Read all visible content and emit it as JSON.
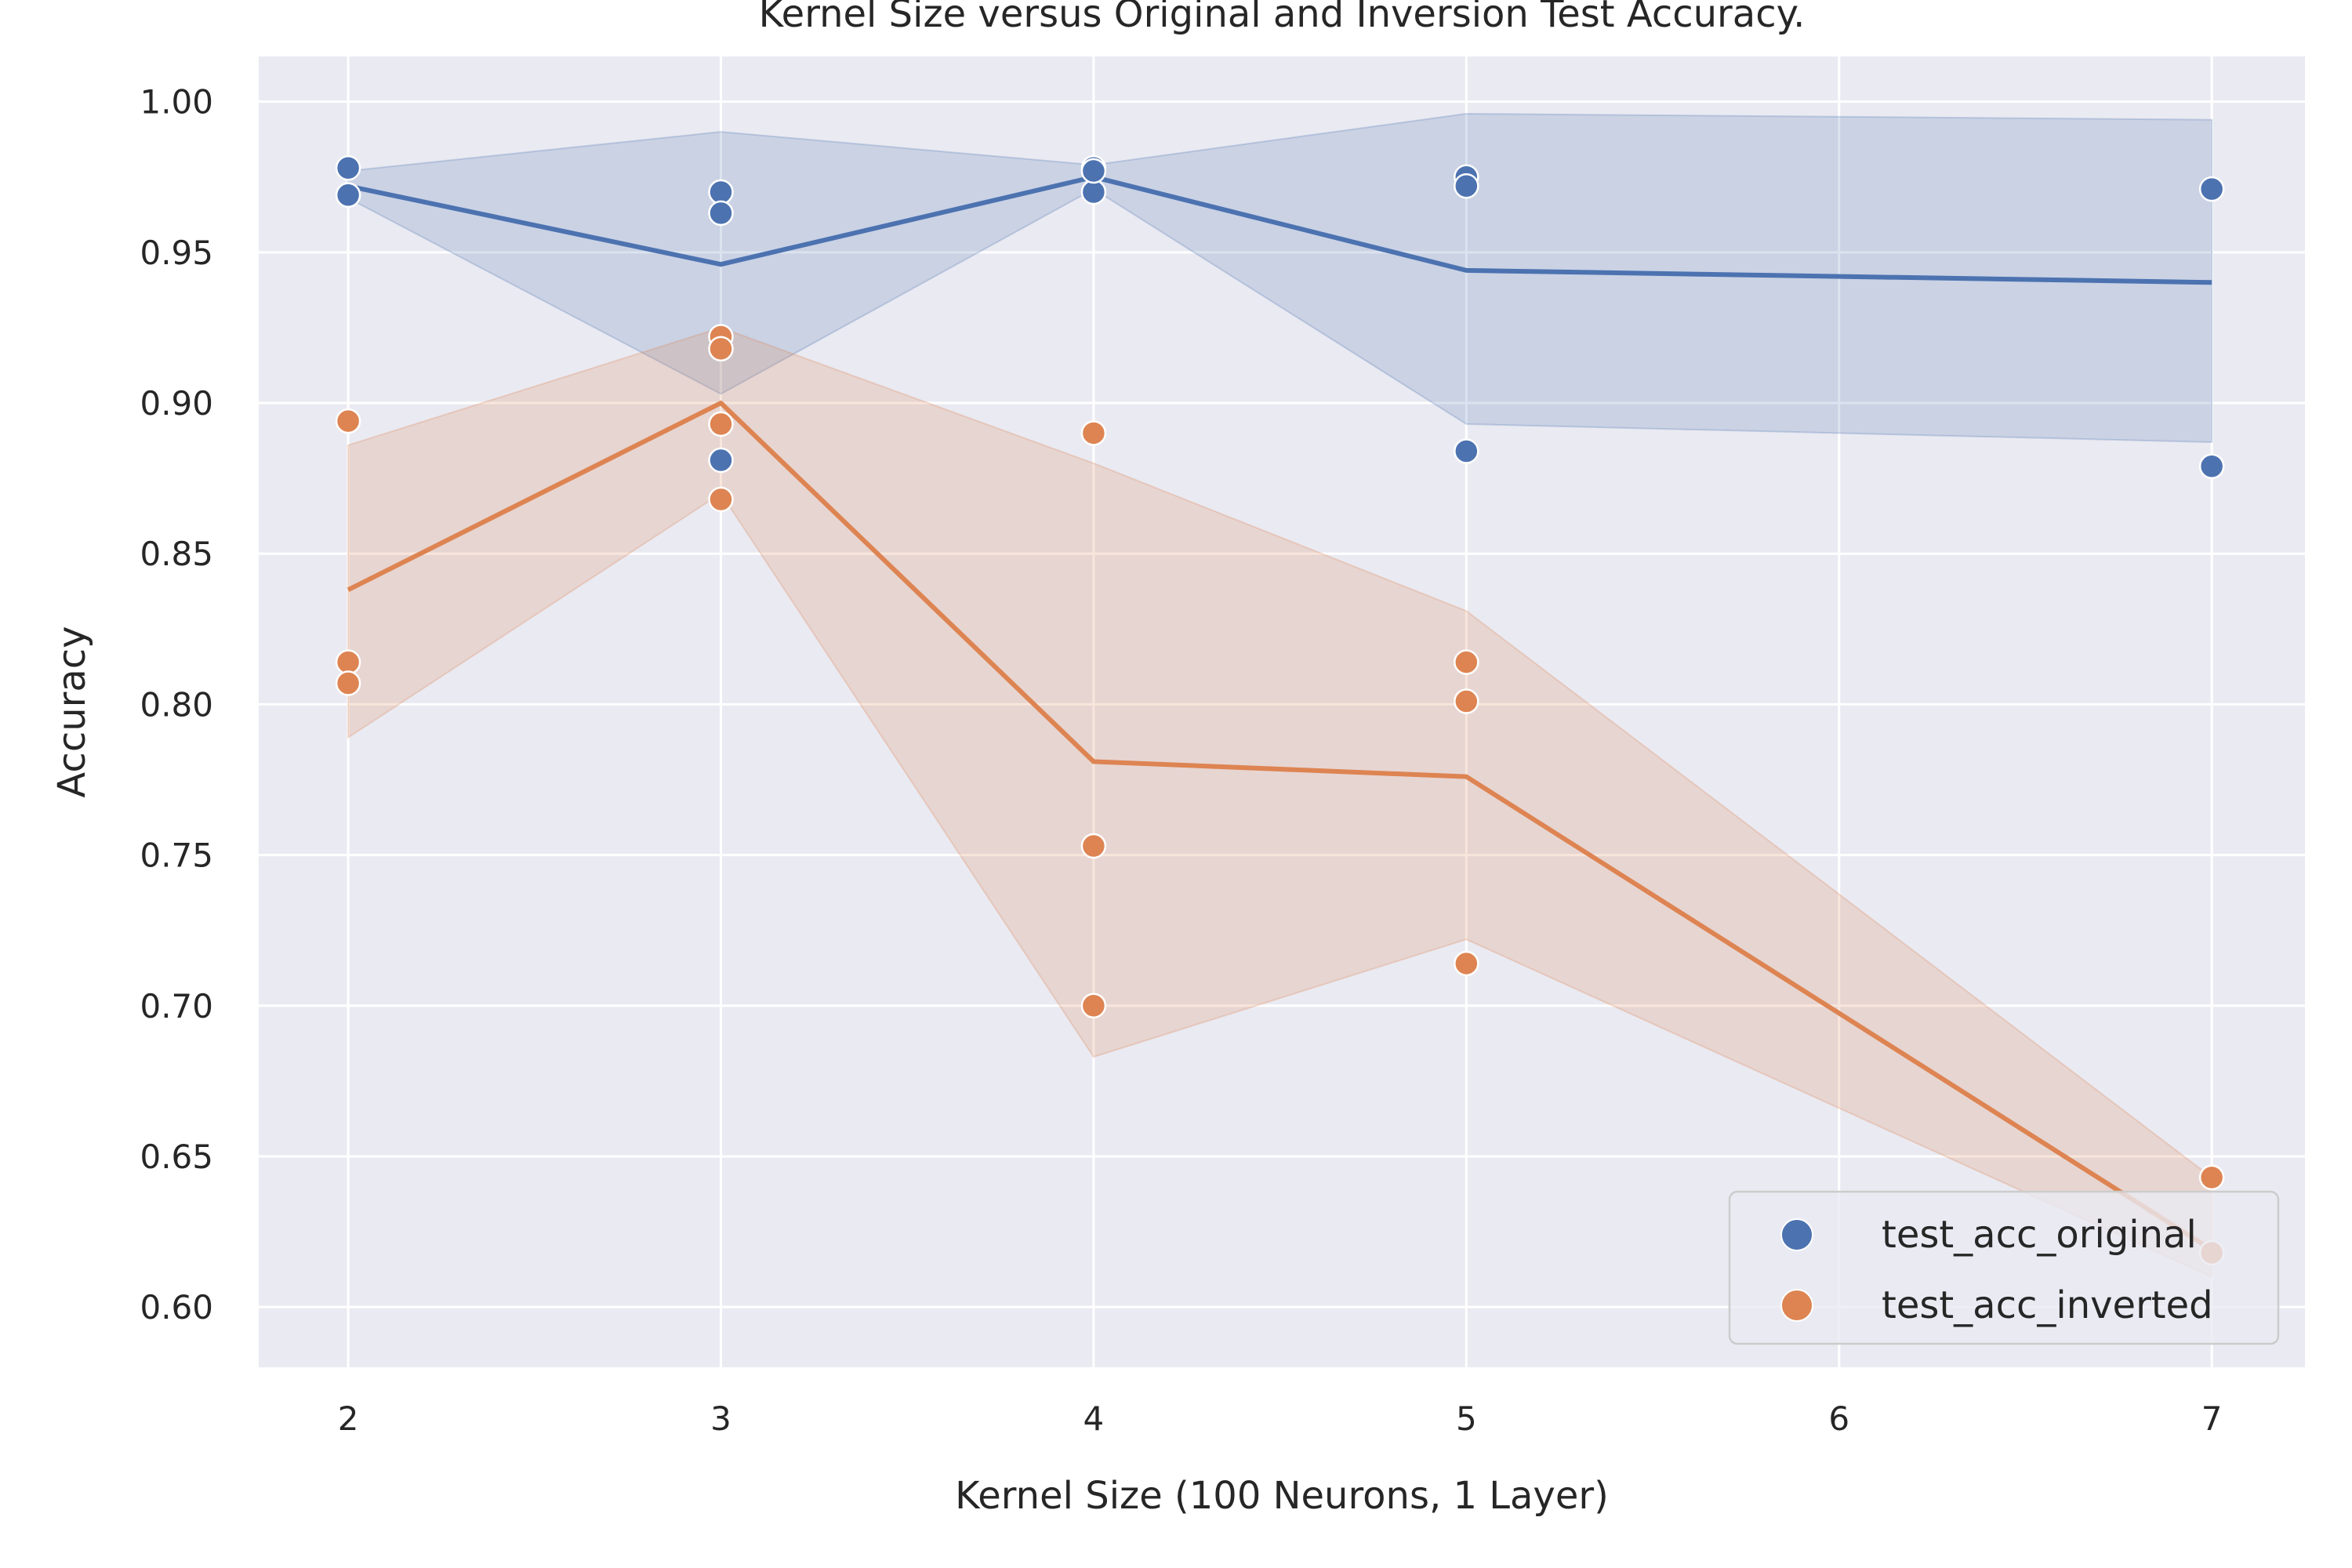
{
  "chart_data": {
    "type": "line",
    "title": "Kernel Size versus Original and Inversion Test Accuracy.",
    "xlabel": "Kernel Size (100 Neurons, 1 Layer)",
    "ylabel": "Accuracy",
    "xlim": [
      1.76,
      7.25
    ],
    "ylim": [
      0.58,
      1.015
    ],
    "x_ticks": [
      2,
      3,
      4,
      5,
      6,
      7
    ],
    "y_ticks": [
      0.6,
      0.65,
      0.7,
      0.75,
      0.8,
      0.85,
      0.9,
      0.95,
      1.0
    ],
    "grid": true,
    "legend_position": "lower right",
    "series": [
      {
        "name": "test_acc_original",
        "color": "#4c72b0",
        "points": [
          [
            2,
            0.978
          ],
          [
            2,
            0.969
          ],
          [
            2,
            0.969
          ],
          [
            3,
            0.97
          ],
          [
            3,
            0.963
          ],
          [
            3,
            0.881
          ],
          [
            4,
            0.978
          ],
          [
            4,
            0.97
          ],
          [
            4,
            0.977
          ],
          [
            5,
            0.975
          ],
          [
            5,
            0.972
          ],
          [
            5,
            0.884
          ],
          [
            7,
            0.971
          ],
          [
            7,
            0.879
          ]
        ],
        "mean_line": [
          [
            2,
            0.972
          ],
          [
            3,
            0.946
          ],
          [
            4,
            0.975
          ],
          [
            5,
            0.944
          ],
          [
            7,
            0.94
          ]
        ],
        "ci_upper": [
          [
            2,
            0.977
          ],
          [
            3,
            0.99
          ],
          [
            4,
            0.979
          ],
          [
            5,
            0.996
          ],
          [
            7,
            0.994
          ]
        ],
        "ci_lower": [
          [
            2,
            0.968
          ],
          [
            3,
            0.903
          ],
          [
            4,
            0.971
          ],
          [
            5,
            0.893
          ],
          [
            7,
            0.887
          ]
        ]
      },
      {
        "name": "test_acc_inverted",
        "color": "#dd8452",
        "points": [
          [
            2,
            0.894
          ],
          [
            2,
            0.814
          ],
          [
            2,
            0.807
          ],
          [
            3,
            0.922
          ],
          [
            3,
            0.918
          ],
          [
            3,
            0.893
          ],
          [
            3,
            0.868
          ],
          [
            4,
            0.89
          ],
          [
            4,
            0.753
          ],
          [
            4,
            0.7
          ],
          [
            5,
            0.814
          ],
          [
            5,
            0.801
          ],
          [
            5,
            0.714
          ],
          [
            7,
            0.643
          ],
          [
            7,
            0.618
          ]
        ],
        "mean_line": [
          [
            2,
            0.838
          ],
          [
            3,
            0.9
          ],
          [
            4,
            0.781
          ],
          [
            5,
            0.776
          ],
          [
            7,
            0.619
          ]
        ],
        "ci_upper": [
          [
            2,
            0.886
          ],
          [
            3,
            0.925
          ],
          [
            4,
            0.88
          ],
          [
            5,
            0.831
          ],
          [
            7,
            0.643
          ]
        ],
        "ci_lower": [
          [
            2,
            0.789
          ],
          [
            3,
            0.87
          ],
          [
            4,
            0.683
          ],
          [
            5,
            0.722
          ],
          [
            7,
            0.61
          ]
        ]
      }
    ]
  }
}
